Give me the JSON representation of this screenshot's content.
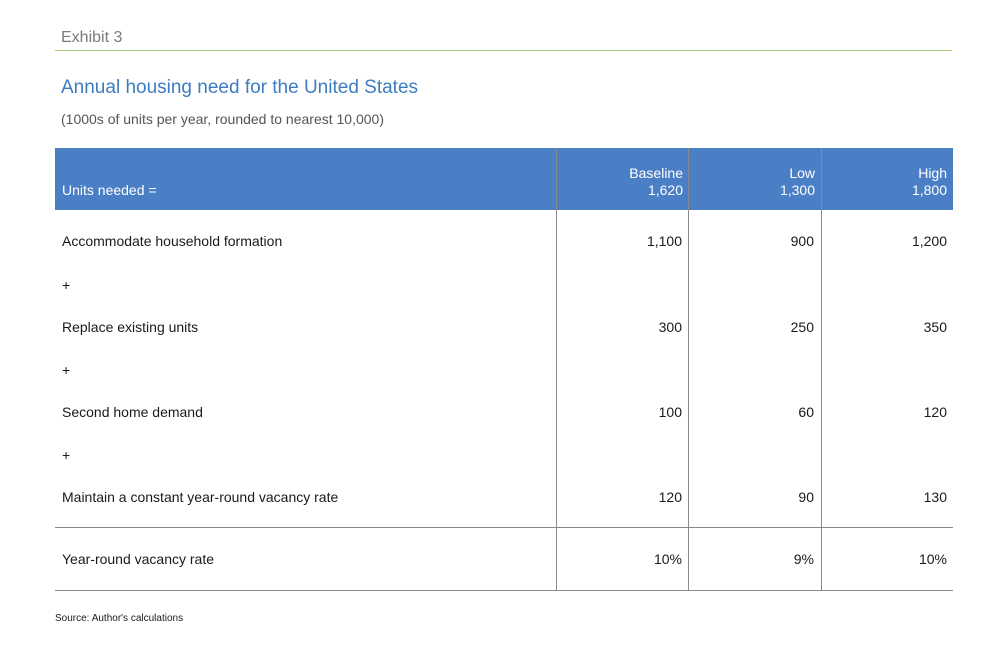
{
  "exhibit_label": "Exhibit 3",
  "title": "Annual housing need for the United States",
  "subtitle": "(1000s of units per year, rounded to nearest 10,000)",
  "table": {
    "header": {
      "label": "Units needed =",
      "columns": [
        {
          "name": "Baseline",
          "value": "1,620"
        },
        {
          "name": "Low",
          "value": "1,300"
        },
        {
          "name": "High",
          "value": "1,800"
        }
      ]
    },
    "rows": [
      {
        "label": "Accommodate household formation",
        "values": [
          "1,100",
          "900",
          "1,200"
        ]
      },
      {
        "label": "+",
        "values": [
          "",
          "",
          ""
        ]
      },
      {
        "label": "Replace existing units",
        "values": [
          "300",
          "250",
          "350"
        ]
      },
      {
        "label": "+",
        "values": [
          "",
          "",
          ""
        ]
      },
      {
        "label": "Second home demand",
        "values": [
          "100",
          "60",
          "120"
        ]
      },
      {
        "label": "+",
        "values": [
          "",
          "",
          ""
        ]
      },
      {
        "label": "Maintain a constant year-round vacancy rate",
        "values": [
          "120",
          "90",
          "130"
        ]
      }
    ],
    "footer_row": {
      "label": "Year-round vacancy rate",
      "values": [
        "10%",
        "9%",
        "10%"
      ]
    }
  },
  "source": "Source: Author's calculations",
  "colors": {
    "header_bg": "#4a7fc5",
    "title": "#3e7cc2",
    "rule": "#a6cf7e"
  }
}
